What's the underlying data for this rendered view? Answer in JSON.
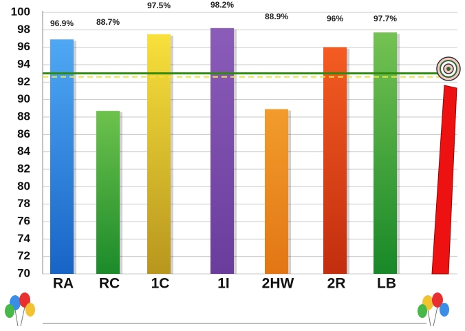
{
  "chart_data": {
    "type": "bar",
    "categories": [
      "RA",
      "RC",
      "1C",
      "1I",
      "2HW",
      "2R",
      "LB"
    ],
    "values": [
      96.9,
      88.7,
      97.5,
      98.2,
      88.9,
      96,
      97.7
    ],
    "value_labels": [
      "96.9%",
      "88.7%",
      "97.5%",
      "98.2%",
      "88.9%",
      "96%",
      "97.7%"
    ],
    "colors": [
      "#4fa8f4",
      "#6dc24c",
      "#f8e03c",
      "#8b5cb9",
      "#f29c2c",
      "#f45c22",
      "#74c252"
    ],
    "colors_bottom": [
      "#1864c6",
      "#1c8a2a",
      "#b8961e",
      "#6a3c9c",
      "#e27614",
      "#c22e0e",
      "#188828"
    ],
    "ylim": [
      70,
      100
    ],
    "yticks": [
      70,
      72,
      74,
      76,
      78,
      80,
      82,
      84,
      86,
      88,
      90,
      92,
      94,
      96,
      98,
      100
    ],
    "grid": true,
    "reference_lines": [
      {
        "value": 93,
        "color": "#2e8b10",
        "dashed": false
      },
      {
        "value": 92.6,
        "color": "#f2e23a",
        "dashed": true
      }
    ]
  }
}
